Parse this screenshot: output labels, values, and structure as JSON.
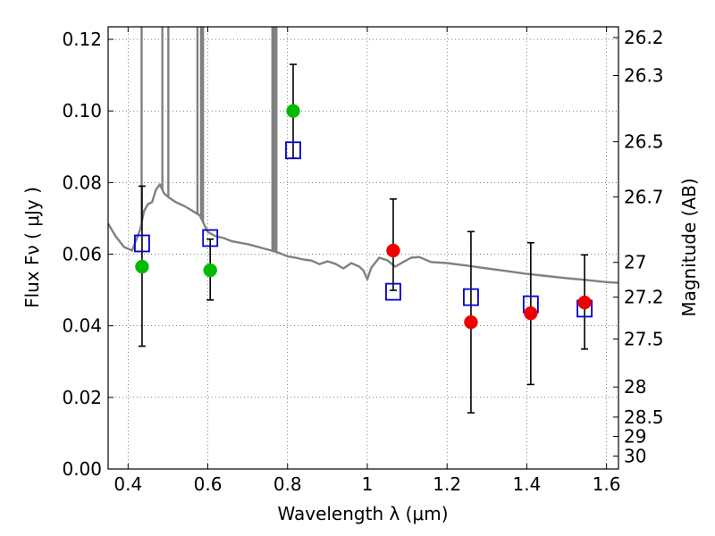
{
  "chart_data": {
    "type": "scatter",
    "xlabel": "Wavelength  λ (μm)",
    "ylabel": "Flux  Fν  ( μJy )",
    "ylabel_right": "Magnitude (AB)",
    "xlim": [
      0.35,
      1.63
    ],
    "ylim": [
      0.0,
      0.1235
    ],
    "x_ticks": [
      0.4,
      0.6,
      0.8,
      1.0,
      1.2,
      1.4,
      1.6
    ],
    "x_tick_labels": [
      "0.4",
      "0.6",
      "0.8",
      "1",
      "1.2",
      "1.4",
      "1.6"
    ],
    "y_ticks": [
      0.0,
      0.02,
      0.04,
      0.06,
      0.08,
      0.1,
      0.12
    ],
    "y_tick_labels": [
      "0.00",
      "0.02",
      "0.04",
      "0.06",
      "0.08",
      "0.10",
      "0.12"
    ],
    "right_ticks": [
      {
        "label": "26.2",
        "flux": 0.1205
      },
      {
        "label": "26.3",
        "flux": 0.1099
      },
      {
        "label": "26.5",
        "flux": 0.0914
      },
      {
        "label": "26.7",
        "flux": 0.076
      },
      {
        "label": "27",
        "flux": 0.0577
      },
      {
        "label": "27.2",
        "flux": 0.048
      },
      {
        "label": "27.5",
        "flux": 0.0363
      },
      {
        "label": "28",
        "flux": 0.0229
      },
      {
        "label": "28.5",
        "flux": 0.0145
      },
      {
        "label": "29",
        "flux": 0.0091
      },
      {
        "label": "30",
        "flux": 0.0036
      }
    ],
    "grid": true,
    "series": [
      {
        "kind": "model_spectrum",
        "color": "#808080",
        "points": [
          [
            0.35,
            0.0685
          ],
          [
            0.37,
            0.0648
          ],
          [
            0.39,
            0.062
          ],
          [
            0.41,
            0.061
          ],
          [
            0.43,
            0.0668
          ],
          [
            0.44,
            0.072
          ],
          [
            0.45,
            0.074
          ],
          [
            0.46,
            0.0745
          ],
          [
            0.47,
            0.078
          ],
          [
            0.48,
            0.0795
          ],
          [
            0.49,
            0.077
          ],
          [
            0.5,
            0.076
          ],
          [
            0.52,
            0.0745
          ],
          [
            0.54,
            0.0735
          ],
          [
            0.56,
            0.0722
          ],
          [
            0.58,
            0.0708
          ],
          [
            0.6,
            0.0662
          ],
          [
            0.62,
            0.065
          ],
          [
            0.64,
            0.0645
          ],
          [
            0.66,
            0.0636
          ],
          [
            0.68,
            0.0632
          ],
          [
            0.7,
            0.0628
          ],
          [
            0.72,
            0.0622
          ],
          [
            0.74,
            0.0616
          ],
          [
            0.76,
            0.061
          ],
          [
            0.78,
            0.0603
          ],
          [
            0.8,
            0.0594
          ],
          [
            0.82,
            0.059
          ],
          [
            0.84,
            0.0585
          ],
          [
            0.86,
            0.0582
          ],
          [
            0.88,
            0.0572
          ],
          [
            0.9,
            0.058
          ],
          [
            0.92,
            0.0573
          ],
          [
            0.94,
            0.056
          ],
          [
            0.96,
            0.0575
          ],
          [
            0.98,
            0.0565
          ],
          [
            0.99,
            0.0555
          ],
          [
            1.0,
            0.053
          ],
          [
            1.01,
            0.0562
          ],
          [
            1.03,
            0.059
          ],
          [
            1.05,
            0.0583
          ],
          [
            1.07,
            0.0565
          ],
          [
            1.09,
            0.0578
          ],
          [
            1.11,
            0.059
          ],
          [
            1.13,
            0.0592
          ],
          [
            1.16,
            0.0578
          ],
          [
            1.2,
            0.0575
          ],
          [
            1.25,
            0.0568
          ],
          [
            1.3,
            0.056
          ],
          [
            1.35,
            0.0553
          ],
          [
            1.4,
            0.0545
          ],
          [
            1.45,
            0.0539
          ],
          [
            1.5,
            0.0533
          ],
          [
            1.55,
            0.0528
          ],
          [
            1.6,
            0.0522
          ],
          [
            1.63,
            0.052
          ]
        ],
        "emission_lines": [
          {
            "x": 0.434,
            "peak": 0.1235
          },
          {
            "x": 0.486,
            "peak": 0.1235
          },
          {
            "x": 0.501,
            "peak": 0.1235
          },
          {
            "x": 0.574,
            "peak": 0.1235
          },
          {
            "x": 0.583,
            "peak": 0.1235
          },
          {
            "x": 0.588,
            "peak": 0.1235
          },
          {
            "x": 0.762,
            "peak": 0.1235
          },
          {
            "x": 0.767,
            "peak": 0.1235
          },
          {
            "x": 0.772,
            "peak": 0.1235
          }
        ]
      },
      {
        "kind": "model_photometry",
        "marker": "open-square",
        "color": "#0000cc",
        "x": [
          0.435,
          0.606,
          0.814,
          1.065,
          1.26,
          1.41,
          1.545
        ],
        "y": [
          0.063,
          0.0645,
          0.089,
          0.0495,
          0.048,
          0.046,
          0.0448
        ]
      },
      {
        "kind": "observed_flux",
        "marker": "filled-circle",
        "color": "#00bb00",
        "x": [
          0.435,
          0.606,
          0.814
        ],
        "y": [
          0.0565,
          0.0555,
          0.1
        ],
        "yerr_low": [
          0.0343,
          0.0472,
          0.0868
        ],
        "yerr_high": [
          0.079,
          0.0642,
          0.113
        ]
      },
      {
        "kind": "observed_flux",
        "marker": "filled-circle",
        "color": "#ee0000",
        "x": [
          1.065,
          1.26,
          1.41,
          1.545
        ],
        "y": [
          0.061,
          0.041,
          0.0435,
          0.0465
        ],
        "yerr_low": [
          0.0499,
          0.0157,
          0.0236,
          0.0335
        ],
        "yerr_high": [
          0.0754,
          0.0663,
          0.0632,
          0.0598
        ]
      }
    ]
  }
}
